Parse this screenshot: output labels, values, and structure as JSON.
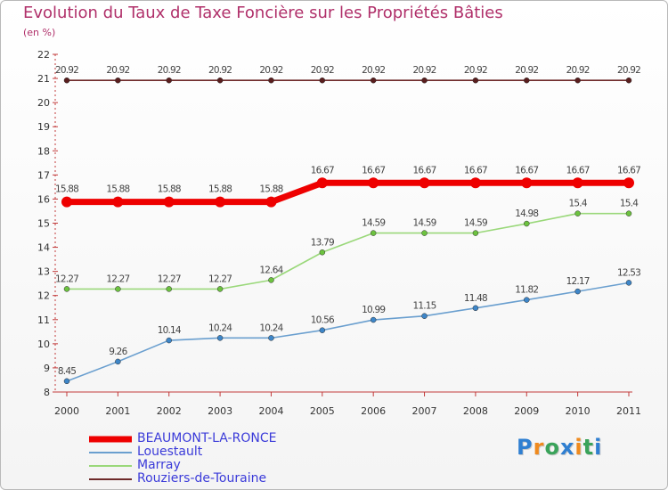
{
  "title": "Evolution du Taux de Taxe Foncière sur les Propriétés Bâties",
  "unit_label": "(en %)",
  "brand": {
    "letters": [
      "P",
      "r",
      "o",
      "x",
      "i",
      "t",
      "i"
    ],
    "colors": [
      "#2f7fd1",
      "#ef8a1e",
      "#3aa35a",
      "#2f7fd1",
      "#ef8a1e",
      "#3aa35a",
      "#2f7fd1"
    ]
  },
  "chart_data": {
    "type": "line",
    "title": "Evolution du Taux de Taxe Foncière sur les Propriétés Bâties",
    "ylabel": "(en %)",
    "xlabel": "",
    "ylim": [
      8,
      22
    ],
    "yticks": [
      8,
      9,
      10,
      11,
      12,
      13,
      14,
      15,
      16,
      17,
      18,
      19,
      20,
      21,
      22
    ],
    "categories": [
      "2000",
      "2001",
      "2002",
      "2003",
      "2004",
      "2005",
      "2006",
      "2007",
      "2008",
      "2009",
      "2010",
      "2011"
    ],
    "series": [
      {
        "name": "Rouziers-de-Touraine",
        "color": "#6e2a2a",
        "marker": "#5a1e1e",
        "values": [
          20.92,
          20.92,
          20.92,
          20.92,
          20.92,
          20.92,
          20.92,
          20.92,
          20.92,
          20.92,
          20.92,
          20.92
        ],
        "labels": [
          "20.92",
          "20.92",
          "20.92",
          "20.92",
          "20.92",
          "20.92",
          "20.92",
          "20.92",
          "20.92",
          "20.92",
          "20.92",
          "20.92"
        ]
      },
      {
        "name": "Marray",
        "color": "#9ad87a",
        "marker": "#6cc23f",
        "values": [
          12.27,
          12.27,
          12.27,
          12.27,
          12.64,
          13.79,
          14.59,
          14.59,
          14.59,
          14.98,
          15.4,
          15.4
        ],
        "labels": [
          "12.27",
          "12.27",
          "12.27",
          "12.27",
          "12.64",
          "13.79",
          "14.59",
          "14.59",
          "14.59",
          "14.98",
          "15.4",
          "15.4"
        ]
      },
      {
        "name": "Louestault",
        "color": "#6a9fcf",
        "marker": "#3e86c8",
        "values": [
          8.45,
          9.26,
          10.14,
          10.24,
          10.24,
          10.56,
          10.99,
          11.15,
          11.48,
          11.82,
          12.17,
          12.53
        ],
        "labels": [
          "8.45",
          "9.26",
          "10.14",
          "10.24",
          "10.24",
          "10.56",
          "10.99",
          "11.15",
          "11.48",
          "11.82",
          "12.17",
          "12.53"
        ]
      },
      {
        "name": "BEAUMONT-LA-RONCE",
        "color": "#ee0000",
        "marker": "#ee0000",
        "bold": true,
        "values": [
          15.88,
          15.88,
          15.88,
          15.88,
          15.88,
          16.67,
          16.67,
          16.67,
          16.67,
          16.67,
          16.67,
          16.67
        ],
        "labels": [
          "15.88",
          "15.88",
          "15.88",
          "15.88",
          "15.88",
          "16.67",
          "16.67",
          "16.67",
          "16.67",
          "16.67",
          "16.67",
          "16.67"
        ]
      }
    ],
    "legend": [
      "BEAUMONT-LA-RONCE",
      "Louestault",
      "Marray",
      "Rouziers-de-Touraine"
    ],
    "legend_colors": [
      "#ee0000",
      "#6a9fcf",
      "#9ad87a",
      "#6e2a2a"
    ],
    "legend_position": "bottom-left"
  }
}
